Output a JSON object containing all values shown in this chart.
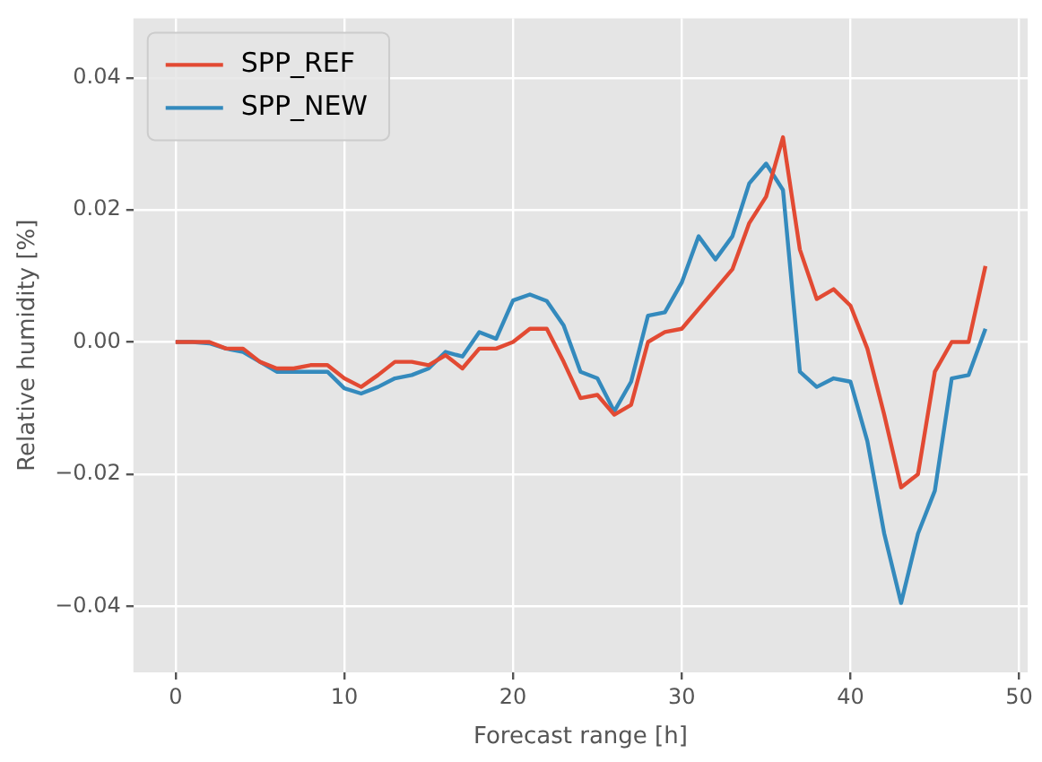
{
  "chart_data": {
    "type": "line",
    "xlabel": "Forecast range [h]",
    "ylabel": "Relative humidity [%]",
    "x": [
      0,
      1,
      2,
      3,
      4,
      5,
      6,
      7,
      8,
      9,
      10,
      11,
      12,
      13,
      14,
      15,
      16,
      17,
      18,
      19,
      20,
      21,
      22,
      23,
      24,
      25,
      26,
      27,
      28,
      29,
      30,
      31,
      32,
      33,
      34,
      35,
      36,
      37,
      38,
      39,
      40,
      41,
      42,
      43,
      44,
      45,
      46,
      47,
      48
    ],
    "series": [
      {
        "name": "SPP_REF",
        "color": "#e24a33",
        "values": [
          0,
          0,
          0,
          -0.001,
          -0.001,
          -0.003,
          -0.004,
          -0.004,
          -0.0035,
          -0.0035,
          -0.0055,
          -0.0068,
          -0.005,
          -0.003,
          -0.003,
          -0.0035,
          -0.002,
          -0.004,
          -0.001,
          -0.001,
          0,
          0.002,
          0.002,
          -0.003,
          -0.0085,
          -0.008,
          -0.011,
          -0.0095,
          0,
          0.0015,
          0.002,
          0.005,
          0.008,
          0.011,
          0.018,
          0.022,
          0.031,
          0.014,
          0.0065,
          0.008,
          0.0055,
          -0.001,
          -0.011,
          -0.022,
          -0.02,
          -0.0045,
          0,
          0,
          0.0115
        ]
      },
      {
        "name": "SPP_NEW",
        "color": "#348abd",
        "values": [
          0,
          0,
          -0.0002,
          -0.001,
          -0.0015,
          -0.003,
          -0.0045,
          -0.0045,
          -0.0045,
          -0.0045,
          -0.007,
          -0.0078,
          -0.0068,
          -0.0055,
          -0.005,
          -0.004,
          -0.0015,
          -0.0022,
          0.0015,
          0.0005,
          0.0063,
          0.0072,
          0.0062,
          0.0025,
          -0.0045,
          -0.0055,
          -0.0105,
          -0.006,
          0.004,
          0.0045,
          0.009,
          0.016,
          0.0125,
          0.016,
          0.024,
          0.027,
          0.023,
          -0.0045,
          -0.0068,
          -0.0055,
          -0.006,
          -0.015,
          -0.029,
          -0.0395,
          -0.029,
          -0.0225,
          -0.0055,
          -0.005,
          0.002
        ]
      }
    ],
    "xlim": [
      -2.5,
      50.5
    ],
    "xticks": [
      0,
      10,
      20,
      30,
      40,
      50
    ],
    "ylim": [
      -0.05,
      0.049
    ],
    "yticks": [
      {
        "value": -0.04,
        "label": "−0.04"
      },
      {
        "value": -0.02,
        "label": "−0.02"
      },
      {
        "value": 0,
        "label": "0.00"
      },
      {
        "value": 0.02,
        "label": "0.02"
      },
      {
        "value": 0.04,
        "label": "0.04"
      }
    ],
    "grid": true,
    "legend": "top left",
    "marker": "none",
    "line_style": "solid"
  }
}
